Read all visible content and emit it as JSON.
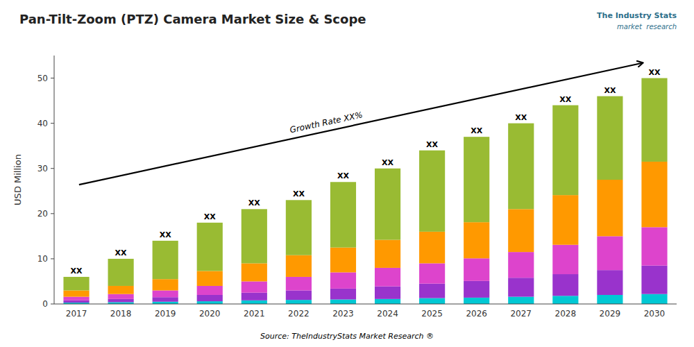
{
  "chart_data": {
    "type": "bar",
    "stacked": true,
    "grid": false,
    "title": "Pan-Tilt-Zoom (PTZ) Camera Market Size & Scope",
    "ylabel": "USD Million",
    "categories": [
      "2017",
      "2018",
      "2019",
      "2020",
      "2021",
      "2022",
      "2023",
      "2024",
      "2025",
      "2026",
      "2027",
      "2028",
      "2029",
      "2030"
    ],
    "series": [
      {
        "color": "#00c8d4",
        "values": [
          0.3,
          0.4,
          0.5,
          0.6,
          0.8,
          0.9,
          1.0,
          1.1,
          1.3,
          1.4,
          1.6,
          1.8,
          2.0,
          2.2
        ]
      },
      {
        "color": "#9933cc",
        "values": [
          0.5,
          0.7,
          1.0,
          1.4,
          1.7,
          2.1,
          2.4,
          2.8,
          3.2,
          3.7,
          4.2,
          4.8,
          5.5,
          6.3
        ]
      },
      {
        "color": "#dd44cc",
        "values": [
          0.8,
          1.1,
          1.5,
          2.0,
          2.5,
          3.0,
          3.6,
          4.1,
          4.5,
          5.0,
          5.7,
          6.5,
          7.5,
          8.5
        ]
      },
      {
        "color": "#ff9900",
        "values": [
          1.4,
          1.8,
          2.5,
          3.3,
          4.0,
          4.8,
          5.5,
          6.2,
          7.0,
          8.0,
          9.5,
          11.0,
          12.5,
          14.5
        ]
      },
      {
        "color": "#99bb33",
        "values": [
          3.0,
          6.0,
          8.5,
          10.7,
          12.0,
          12.2,
          14.5,
          15.8,
          18.0,
          18.9,
          19.0,
          19.9,
          18.5,
          18.5
        ]
      }
    ],
    "bar_label": "XX",
    "ylim": [
      0,
      55
    ],
    "yticks": [
      0,
      10,
      20,
      30,
      40,
      50
    ],
    "annotations": [
      "Growth Rate XX%",
      "Source: TheIndustryStats Market Research ®",
      "The Industry Stats",
      "market  research"
    ]
  }
}
